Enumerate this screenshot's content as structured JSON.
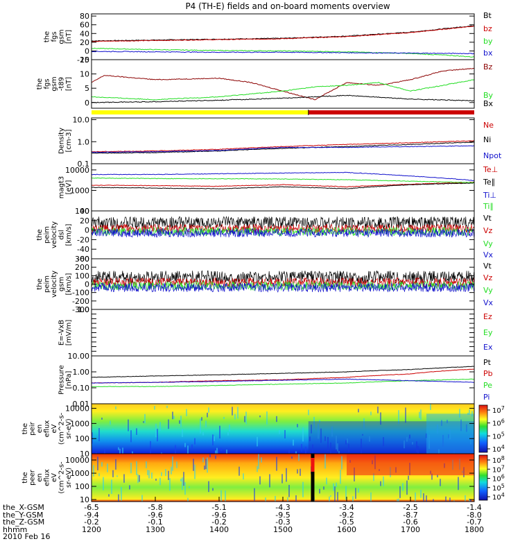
{
  "title": "P4 (TH-E) fields and on-board moments overview",
  "colors": {
    "black": "#000000",
    "red": "#cc0000",
    "dark_red": "#8b0000",
    "green": "#22dd22",
    "blue": "#1010cc",
    "yellow": "#ffff00"
  },
  "chart_data": [
    {
      "type": "line",
      "title": "",
      "ylabel": [
        "the",
        "fgs",
        "gsm",
        "[nT]"
      ],
      "ylim": [
        -20,
        85
      ],
      "yticks": [
        -20,
        0,
        20,
        40,
        60,
        80
      ],
      "tick_labels": [
        "-20",
        "0",
        "20",
        "40",
        "60",
        "80"
      ],
      "series": [
        {
          "name": "Bt",
          "color": "#000000",
          "x": [
            1200,
            1300,
            1400,
            1500,
            1600,
            1700,
            1760,
            1800
          ],
          "y": [
            23,
            25,
            27,
            29,
            34,
            43,
            52,
            58
          ]
        },
        {
          "name": "bz",
          "color": "#cc0000",
          "x": [
            1200,
            1300,
            1400,
            1500,
            1600,
            1700,
            1760,
            1800
          ],
          "y": [
            22,
            24,
            26,
            28,
            33,
            42,
            51,
            57
          ]
        },
        {
          "name": "by",
          "color": "#22dd22",
          "x": [
            1200,
            1300,
            1400,
            1500,
            1600,
            1700,
            1760,
            1800
          ],
          "y": [
            6,
            3,
            1,
            0,
            -2,
            -6,
            -10,
            -14
          ]
        },
        {
          "name": "bx",
          "color": "#1010cc",
          "x": [
            1200,
            1300,
            1400,
            1500,
            1600,
            1700,
            1800
          ],
          "y": [
            -1,
            -2,
            -3,
            -3,
            -4,
            -5,
            -6
          ]
        }
      ]
    },
    {
      "type": "line",
      "title": "",
      "ylabel": [
        "the",
        "fgs",
        "gsm",
        "-t89",
        "[nT]"
      ],
      "ylim": [
        -2,
        15
      ],
      "yticks": [
        0,
        5,
        10,
        15
      ],
      "tick_labels": [
        "0",
        "5",
        "10",
        "15"
      ],
      "series": [
        {
          "name": "Bz",
          "color": "#8b0000",
          "x": [
            1200,
            1220,
            1300,
            1400,
            1450,
            1500,
            1550,
            1600,
            1650,
            1700,
            1750,
            1800
          ],
          "y": [
            7,
            9.5,
            8,
            8.5,
            7,
            4,
            1,
            7,
            6,
            8,
            11,
            12
          ]
        },
        {
          "name": "By",
          "color": "#22dd22",
          "x": [
            1200,
            1300,
            1400,
            1500,
            1550,
            1600,
            1650,
            1700,
            1750,
            1800
          ],
          "y": [
            2,
            1,
            2,
            4,
            5.5,
            6,
            7,
            4,
            6,
            8
          ]
        },
        {
          "name": "Bx",
          "color": "#000000",
          "x": [
            1200,
            1300,
            1400,
            1500,
            1600,
            1700,
            1800
          ],
          "y": [
            0,
            0.3,
            0.8,
            1.5,
            2.5,
            1.2,
            0.6
          ]
        }
      ]
    },
    {
      "type": "line",
      "title": "",
      "yscale": "log",
      "ylabel": [
        "Density",
        "[cm-3]"
      ],
      "ylim": [
        0.1,
        12
      ],
      "yticks": [
        0.1,
        1.0,
        10.0
      ],
      "tick_labels": [
        "0.1",
        "1.0",
        "10.0"
      ],
      "series": [
        {
          "name": "Ne",
          "color": "#cc0000",
          "x": [
            1200,
            1300,
            1400,
            1500,
            1600,
            1700,
            1800
          ],
          "y": [
            0.35,
            0.38,
            0.45,
            0.6,
            0.75,
            0.9,
            1.1
          ]
        },
        {
          "name": "Ni",
          "color": "#000000",
          "x": [
            1200,
            1300,
            1400,
            1500,
            1600,
            1700,
            1800
          ],
          "y": [
            0.3,
            0.32,
            0.38,
            0.5,
            0.6,
            0.75,
            0.95
          ]
        },
        {
          "name": "Npot",
          "color": "#1010cc",
          "x": [
            1200,
            1300,
            1400,
            1500,
            1600,
            1700,
            1800
          ],
          "y": [
            0.33,
            0.35,
            0.4,
            0.55,
            0.55,
            0.6,
            0.65
          ]
        }
      ]
    },
    {
      "type": "line",
      "title": "",
      "yscale": "log",
      "ylabel": [
        "magt3",
        "[eV]"
      ],
      "ylim": [
        100,
        20000
      ],
      "yticks": [
        100,
        1000,
        10000
      ],
      "tick_labels": [
        "100",
        "1000",
        "10000"
      ],
      "series": [
        {
          "name": "Te⊥",
          "color": "#cc0000",
          "x": [
            1200,
            1300,
            1400,
            1500,
            1600,
            1700,
            1800
          ],
          "y": [
            1800,
            1700,
            1600,
            1900,
            1500,
            2000,
            2500
          ]
        },
        {
          "name": "Te∥",
          "color": "#000000",
          "x": [
            1200,
            1300,
            1400,
            1500,
            1600,
            1700,
            1800
          ],
          "y": [
            1400,
            1300,
            1200,
            1500,
            1200,
            1900,
            2300
          ]
        },
        {
          "name": "Ti⊥",
          "color": "#1010cc",
          "x": [
            1200,
            1300,
            1400,
            1500,
            1600,
            1700,
            1800
          ],
          "y": [
            6000,
            6000,
            6500,
            7000,
            7500,
            5000,
            3000
          ]
        },
        {
          "name": "Ti∥",
          "color": "#22dd22",
          "x": [
            1200,
            1300,
            1400,
            1500,
            1600,
            1700,
            1800
          ],
          "y": [
            4000,
            3800,
            3700,
            3600,
            3300,
            2800,
            2400
          ]
        }
      ]
    },
    {
      "type": "line",
      "title": "",
      "ylabel": [
        "the",
        "peim",
        "velocity",
        "dsl",
        "[km/s]"
      ],
      "ylim": [
        -60,
        40
      ],
      "yticks": [
        -60,
        -40,
        -20,
        0,
        20,
        40
      ],
      "tick_labels": [
        "-60",
        "-40",
        "-20",
        "0",
        "20",
        "40"
      ],
      "series": [
        {
          "name": "Vt",
          "color": "#000000",
          "x": [
            1200,
            1500,
            1800
          ],
          "y": [
            15,
            15,
            15
          ]
        },
        {
          "name": "Vz",
          "color": "#cc0000",
          "x": [
            1200,
            1500,
            1800
          ],
          "y": [
            3,
            3,
            3
          ]
        },
        {
          "name": "Vy",
          "color": "#22dd22",
          "x": [
            1200,
            1500,
            1800
          ],
          "y": [
            -3,
            -3,
            -3
          ]
        },
        {
          "name": "Vx",
          "color": "#1010cc",
          "x": [
            1200,
            1500,
            1800
          ],
          "y": [
            -6,
            -6,
            -6
          ]
        }
      ]
    },
    {
      "type": "line",
      "title": "",
      "ylabel": [
        "the",
        "peim",
        "velocity",
        "gsm",
        "[km/s]"
      ],
      "ylim": [
        -300,
        300
      ],
      "yticks": [
        -300,
        -200,
        -100,
        0,
        100,
        200,
        300
      ],
      "tick_labels": [
        "-300",
        "-200",
        "-100",
        "0",
        "100",
        "200",
        "300"
      ],
      "series": [
        {
          "name": "Vt",
          "color": "#000000",
          "x": [
            1200,
            1500,
            1800
          ],
          "y": [
            80,
            80,
            80
          ]
        },
        {
          "name": "Vz",
          "color": "#cc0000",
          "x": [
            1200,
            1500,
            1800
          ],
          "y": [
            20,
            20,
            20
          ]
        },
        {
          "name": "Vy",
          "color": "#22dd22",
          "x": [
            1200,
            1500,
            1800
          ],
          "y": [
            -20,
            -20,
            -20
          ]
        },
        {
          "name": "Vx",
          "color": "#1010cc",
          "x": [
            1200,
            1500,
            1800
          ],
          "y": [
            -40,
            -40,
            -40
          ]
        }
      ]
    },
    {
      "type": "line",
      "title": "",
      "ylabel": [
        "E=-VxB",
        "[mV/m]"
      ],
      "ylim": [
        0,
        1
      ],
      "yticks": [
        0,
        0.1,
        0.2,
        0.3,
        0.4,
        0.5,
        0.6,
        0.7,
        0.8,
        0.9,
        1.0
      ],
      "tick_labels": [
        "",
        "",
        "",
        "",
        "",
        "",
        "",
        "",
        "",
        "",
        "1.0"
      ],
      "series": [
        {
          "name": "Ez",
          "color": "#cc0000",
          "x": [],
          "y": []
        },
        {
          "name": "Ey",
          "color": "#22dd22",
          "x": [],
          "y": []
        },
        {
          "name": "Ex",
          "color": "#1010cc",
          "x": [],
          "y": []
        }
      ]
    },
    {
      "type": "line",
      "title": "",
      "yscale": "log",
      "ylabel": [
        "Pressure",
        "[nPa]"
      ],
      "ylim": [
        0.01,
        10
      ],
      "yticks": [
        0.01,
        0.1,
        1,
        10
      ],
      "tick_labels": [
        "0.01",
        "0.10",
        "1.00",
        "10.00"
      ],
      "series": [
        {
          "name": "Pt",
          "color": "#000000",
          "x": [
            1200,
            1300,
            1400,
            1500,
            1600,
            1700,
            1800
          ],
          "y": [
            0.45,
            0.55,
            0.65,
            0.8,
            1.0,
            1.4,
            2.2
          ]
        },
        {
          "name": "Pb",
          "color": "#cc0000",
          "x": [
            1200,
            1300,
            1400,
            1500,
            1600,
            1700,
            1800
          ],
          "y": [
            0.2,
            0.22,
            0.28,
            0.32,
            0.45,
            0.75,
            1.5
          ]
        },
        {
          "name": "Pe",
          "color": "#22dd22",
          "x": [
            1200,
            1300,
            1400,
            1500,
            1600,
            1700,
            1800
          ],
          "y": [
            0.12,
            0.12,
            0.14,
            0.17,
            0.2,
            0.28,
            0.35
          ]
        },
        {
          "name": "Pi",
          "color": "#1010cc",
          "x": [
            1200,
            1300,
            1400,
            1500,
            1600,
            1700,
            1800
          ],
          "y": [
            0.2,
            0.22,
            0.25,
            0.3,
            0.35,
            0.28,
            0.22
          ]
        }
      ]
    },
    {
      "type": "heatmap",
      "title": "",
      "yscale": "log",
      "ylabel": [
        "the",
        "peir",
        "en",
        "eflux",
        "eV",
        "(cm^2-s-",
        "sr-eV)"
      ],
      "ylim": [
        10,
        20000
      ],
      "yticks": [
        10,
        100,
        1000,
        10000
      ],
      "tick_labels": [
        "10",
        "100",
        "1000",
        "10000"
      ],
      "colorbar": {
        "labels": [
          "10^7",
          "10^6",
          "10^5",
          "10^4"
        ],
        "range": [
          10000,
          10000000
        ]
      }
    },
    {
      "type": "heatmap",
      "title": "",
      "yscale": "log",
      "ylabel": [
        "the",
        "peer",
        "en",
        "eflux",
        "eV",
        "(cm^2-s-",
        "sr-eV)"
      ],
      "ylim": [
        7,
        30000
      ],
      "yticks": [
        10,
        100,
        1000,
        10000
      ],
      "tick_labels": [
        "10",
        "100",
        "1000",
        "10000"
      ],
      "colorbar": {
        "labels": [
          "10^8",
          "10^7",
          "10^6",
          "10^5",
          "10^4"
        ],
        "range": [
          10000,
          100000000
        ]
      }
    }
  ],
  "x_axis": {
    "range": [
      1200,
      1800
    ],
    "rows": [
      {
        "label": "the_X-GSM",
        "values": [
          "-6.5",
          "-5.8",
          "-5.1",
          "-4.3",
          "-3.4",
          "-2.5",
          "-1.4"
        ]
      },
      {
        "label": "the_Y-GSM",
        "values": [
          "-9.4",
          "-9.6",
          "-9.6",
          "-9.5",
          "-9.2",
          "-8.7",
          "-8.0"
        ]
      },
      {
        "label": "the_Z-GSM",
        "values": [
          "-0.2",
          "-0.1",
          "-0.2",
          "-0.3",
          "-0.5",
          "-0.6",
          "-0.7"
        ]
      },
      {
        "label": "hhmm",
        "values": [
          "1200",
          "1300",
          "1400",
          "1500",
          "1600",
          "1700",
          "1800"
        ]
      }
    ],
    "date": "2010 Feb 16"
  }
}
